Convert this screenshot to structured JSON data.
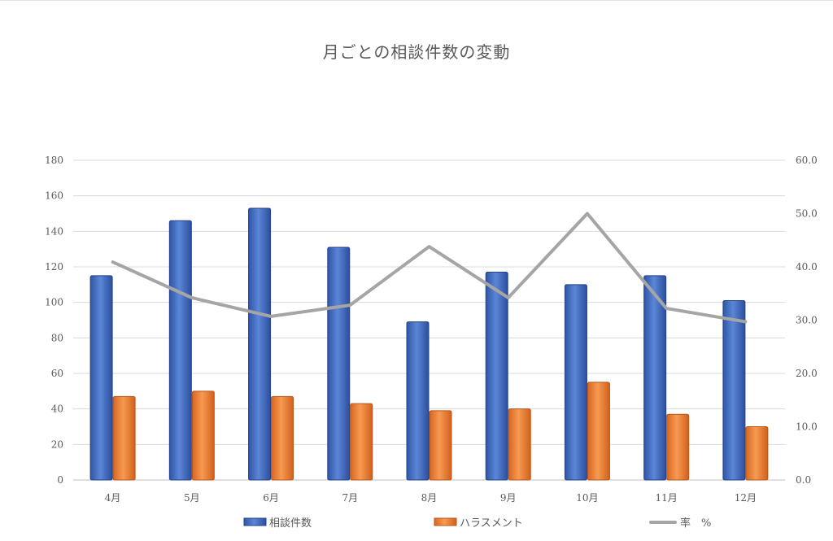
{
  "chart_data": {
    "type": "bar",
    "title": "月ごとの相談件数の変動",
    "categories": [
      "4月",
      "5月",
      "6月",
      "7月",
      "8月",
      "9月",
      "10月",
      "11月",
      "12月"
    ],
    "series": [
      {
        "name": "相談件数",
        "type": "bar",
        "axis": "left",
        "color": "#4472C4",
        "values": [
          115,
          146,
          153,
          131,
          89,
          117,
          110,
          115,
          101
        ]
      },
      {
        "name": "ハラスメント",
        "type": "bar",
        "axis": "left",
        "color": "#ED7D31",
        "values": [
          47,
          50,
          47,
          43,
          39,
          40,
          55,
          37,
          30
        ]
      },
      {
        "name": "率　%",
        "type": "line",
        "axis": "right",
        "color": "#A5A5A5",
        "values": [
          40.9,
          34.2,
          30.7,
          32.8,
          43.8,
          34.2,
          50.0,
          32.2,
          29.7
        ]
      }
    ],
    "y_left": {
      "ylim": [
        0,
        180
      ],
      "ticks": [
        "0",
        "20",
        "40",
        "60",
        "80",
        "100",
        "120",
        "140",
        "160",
        "180"
      ]
    },
    "y_right": {
      "ylim": [
        0,
        60
      ],
      "ticks": [
        "0.0",
        "10.0",
        "20.0",
        "30.0",
        "40.0",
        "50.0",
        "60.0"
      ]
    },
    "grid": true,
    "legend": "bottom"
  }
}
